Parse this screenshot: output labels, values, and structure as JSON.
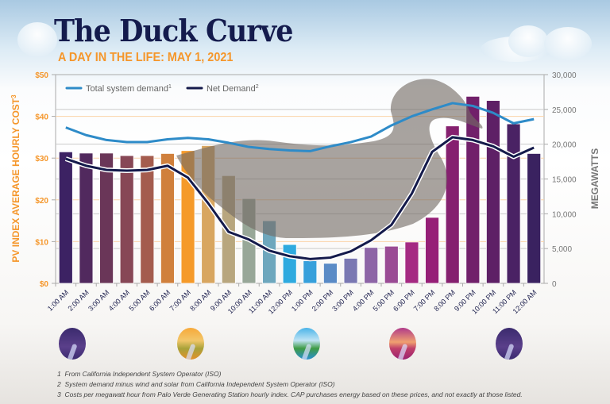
{
  "header": {
    "title": "The Duck Curve",
    "subtitle": "A DAY IN THE LIFE: MAY 1, 2021"
  },
  "chart_data": {
    "type": "bar+line",
    "categories": [
      "1:00 AM",
      "2:00 AM",
      "3:00 AM",
      "4:00 AM",
      "5:00 AM",
      "6:00 AM",
      "7:00 AM",
      "8:00 AM",
      "9:00 AM",
      "10:00 AM",
      "11:00 AM",
      "12:00 PM",
      "1:00 PM",
      "2:00 PM",
      "3:00 PM",
      "4:00 PM",
      "5:00 PM",
      "6:00 PM",
      "7:00 PM",
      "8:00 PM",
      "9:00 PM",
      "10:00 PM",
      "11:00 PM",
      "12:00 AM"
    ],
    "bars": {
      "axis": "left",
      "values": [
        31.5,
        31.2,
        31.2,
        30.6,
        30.6,
        31.1,
        31.8,
        33.0,
        25.8,
        20.3,
        15.0,
        9.3,
        5.4,
        4.8,
        6.0,
        8.6,
        8.9,
        9.9,
        15.8,
        37.7,
        44.8,
        43.8,
        38.2,
        31.1
      ],
      "colors": [
        "#3c2263",
        "#51295e",
        "#6a3658",
        "#874756",
        "#a45c4e",
        "#d0803c",
        "#f59a2a",
        "#d8a660",
        "#b8a67e",
        "#98a798",
        "#6ea7bd",
        "#2faadf",
        "#37a0db",
        "#5a8bc6",
        "#7a78b2",
        "#8d65a6",
        "#9a4b94",
        "#a52a82",
        "#961f77",
        "#85206f",
        "#71206a",
        "#5e2066",
        "#4a2264",
        "#3a2260"
      ]
    },
    "series": [
      {
        "name": "Total system demand",
        "sup": "1",
        "axis": "right",
        "color": "#2e8bc8",
        "values": [
          22400,
          21300,
          20600,
          20300,
          20300,
          20700,
          20900,
          20700,
          20200,
          19600,
          19300,
          19100,
          19000,
          19700,
          20300,
          21100,
          22700,
          24000,
          25000,
          25900,
          25500,
          24500,
          23000,
          23600
        ]
      },
      {
        "name": "Net Demand",
        "sup": "2",
        "axis": "right",
        "color": "#141a4b",
        "values": [
          17900,
          16900,
          16300,
          16200,
          16300,
          16900,
          15200,
          11500,
          7400,
          6300,
          4700,
          3900,
          3500,
          3700,
          4600,
          6200,
          8400,
          12900,
          18900,
          21000,
          20600,
          19700,
          18200,
          19500
        ]
      }
    ],
    "ylabel_left": "PV INDEX AVERAGE HOURLY COST",
    "ylabel_left_sup": "3",
    "ylabel_right": "MEGAWATTS",
    "yticks_left": [
      "$0",
      "$10",
      "$20",
      "$30",
      "$40",
      "$50"
    ],
    "ylim_left": [
      0,
      50
    ],
    "yticks_right": [
      "0",
      "5,000",
      "10,000",
      "15,000",
      "20,000",
      "25,000",
      "30,000"
    ],
    "ylim_right": [
      0,
      30000
    ],
    "legend": "top-left",
    "accent": "#f5962a"
  },
  "icons": [
    "night-river-icon",
    "sunrise-river-icon",
    "midday-river-icon",
    "sunset-river-icon",
    "night-river-icon"
  ],
  "footnotes": [
    {
      "num": "1",
      "text": "From California Independent System Operator (ISO)"
    },
    {
      "num": "2",
      "text": "System demand minus wind and solar from California Independent System Operator (ISO)"
    },
    {
      "num": "3",
      "text": "Costs per megawatt hour from Palo Verde Generating Station hourly index. CAP purchases energy based on these prices, and not exactly at those listed."
    }
  ]
}
